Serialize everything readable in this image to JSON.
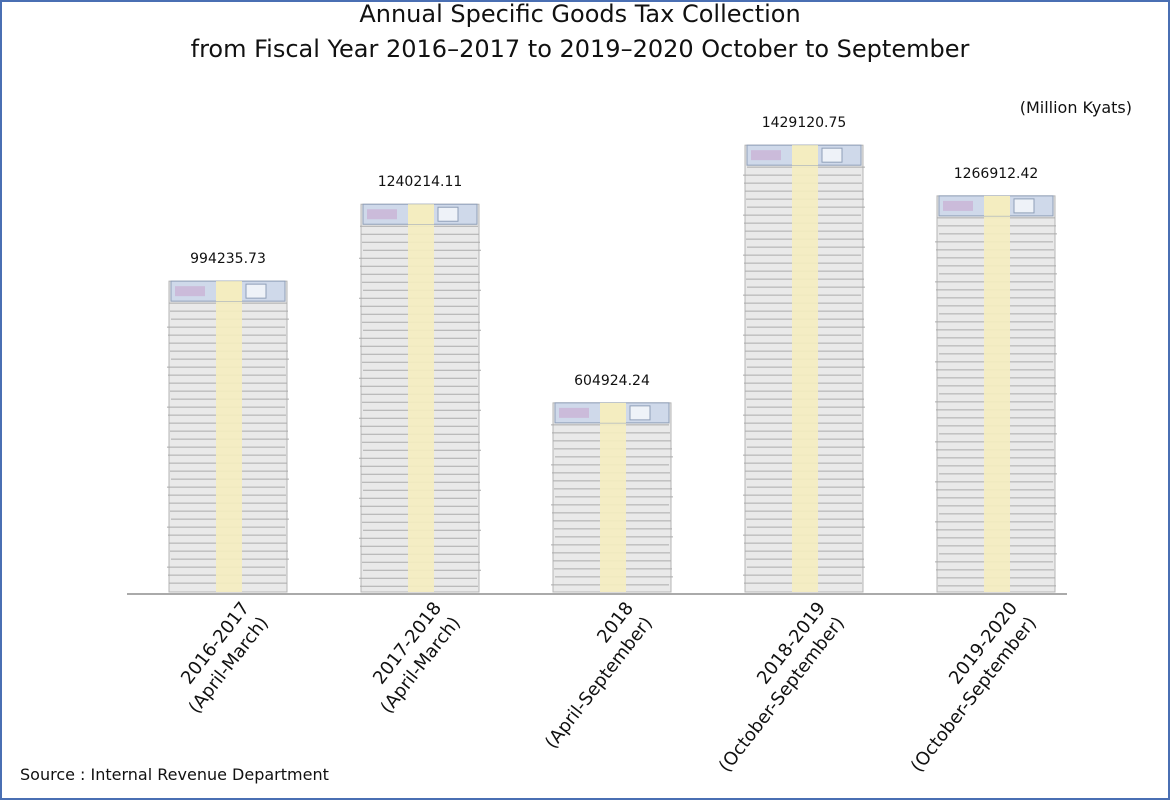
{
  "chart_data": {
    "type": "bar",
    "title": "Annual Specific Goods Tax Collection",
    "subtitle": "from Fiscal Year  2016–2017 to 2019–2020 October to September",
    "unit_label": "(Million Kyats)",
    "source": "Source : Internal Revenue Department",
    "categories": [
      [
        "2016-2017",
        "(April-March)"
      ],
      [
        "2017-2018",
        "(April-March)"
      ],
      [
        "2018",
        "(April-September)"
      ],
      [
        "2018-2019",
        "(October-September)"
      ],
      [
        "2019-2020",
        "(October-September)"
      ]
    ],
    "values": [
      994235.73,
      1240214.11,
      604924.24,
      1429120.75,
      1266912.42
    ],
    "value_labels": [
      "994235.73",
      "1240214.11",
      "604924.24",
      "1429120.75",
      "1266912.42"
    ],
    "ylim": [
      0,
      1580000
    ],
    "grid": false,
    "legend": "none",
    "colors": {
      "frame": "#4a6fb3",
      "note": "#e9e9e9",
      "note_edge": "#b5b5b5",
      "band": "#f4edc0",
      "bill": "#cfd9ea"
    }
  }
}
